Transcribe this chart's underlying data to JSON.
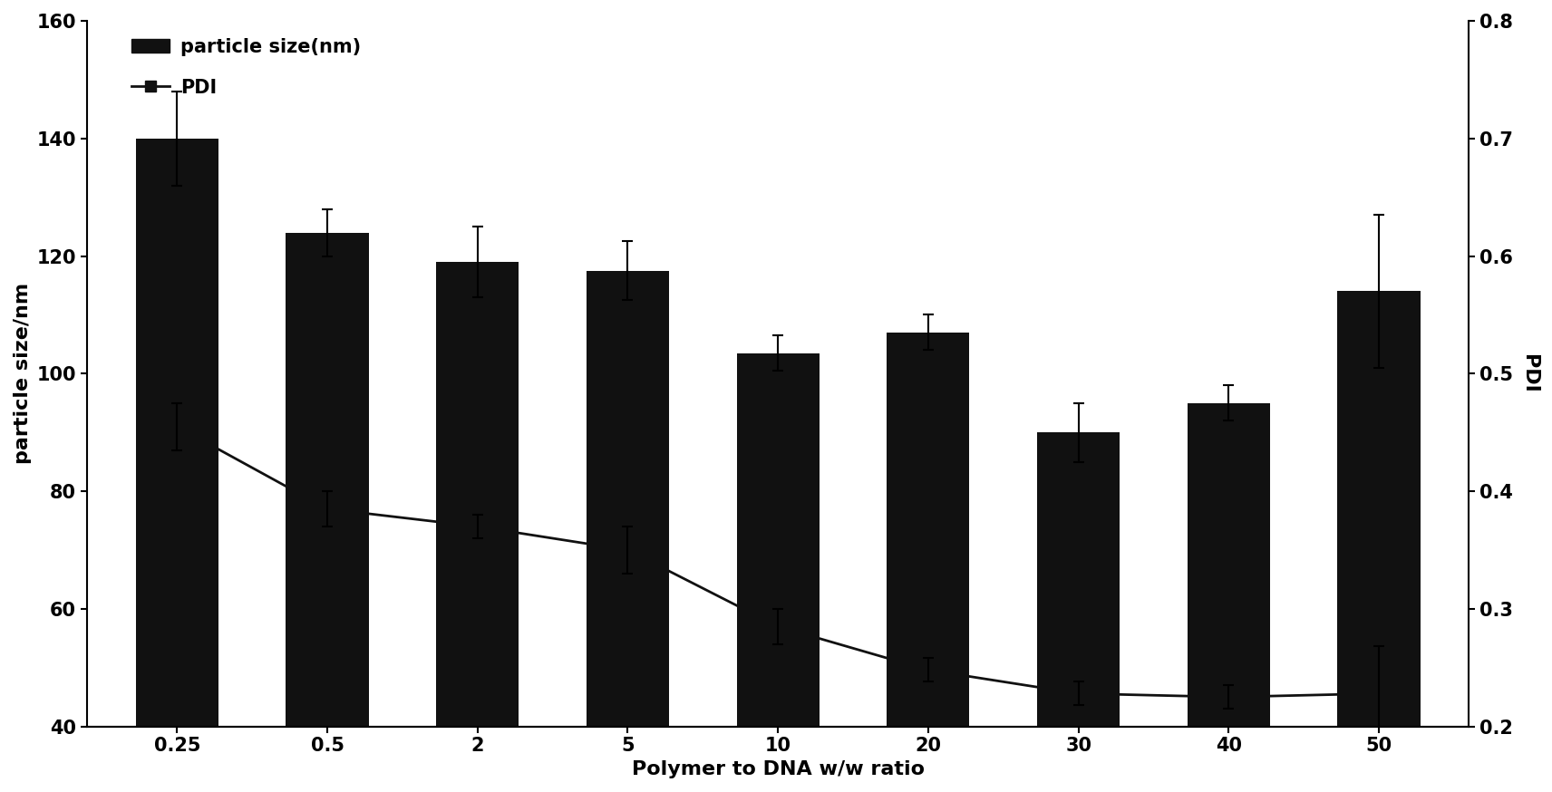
{
  "categories": [
    "0.25",
    "0.5",
    "2",
    "5",
    "10",
    "20",
    "30",
    "40",
    "50"
  ],
  "bar_values": [
    140,
    124,
    119,
    117.5,
    103.5,
    107,
    90,
    95,
    114
  ],
  "bar_errors": [
    8,
    4,
    6,
    5,
    3,
    3,
    5,
    3,
    13
  ],
  "pdi_values": [
    0.455,
    0.385,
    0.37,
    0.35,
    0.285,
    0.248,
    0.228,
    0.225,
    0.228
  ],
  "pdi_errors": [
    0.02,
    0.015,
    0.01,
    0.02,
    0.015,
    0.01,
    0.01,
    0.01,
    0.04
  ],
  "bar_color": "#111111",
  "line_color": "#111111",
  "xlabel": "Polymer to DNA w/w ratio",
  "ylabel_left": "particle size/nm",
  "ylabel_right": "PDI",
  "ylim_left": [
    40,
    160
  ],
  "ylim_right": [
    0.2,
    0.8
  ],
  "yticks_left": [
    40,
    60,
    80,
    100,
    120,
    140,
    160
  ],
  "yticks_right": [
    0.2,
    0.3,
    0.4,
    0.5,
    0.6,
    0.7,
    0.8
  ],
  "legend_bar_label": "particle size(nm)",
  "legend_line_label": "PDI",
  "bar_width": 0.55,
  "background_color": "#ffffff",
  "label_fontsize": 16,
  "tick_fontsize": 15,
  "legend_fontsize": 15
}
